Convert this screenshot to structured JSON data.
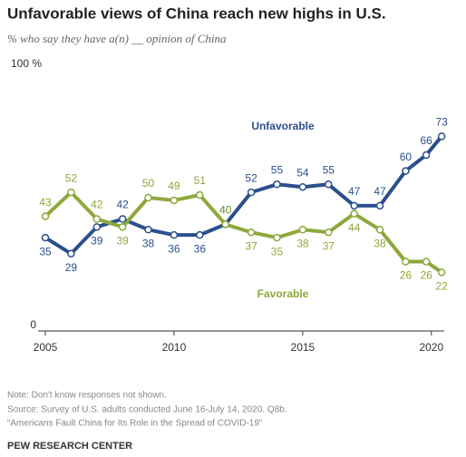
{
  "chart_data": {
    "type": "line",
    "title": "Unfavorable views of China reach new highs in U.S.",
    "subtitle": "% who say they have a(n) __ opinion of China",
    "x": [
      2005,
      2006,
      2007,
      2008,
      2009,
      2010,
      2011,
      2012,
      2013,
      2014,
      2015,
      2016,
      2017,
      2018,
      2019,
      2019.8,
      2020.4
    ],
    "series": [
      {
        "name": "Unfavorable",
        "color": "#2b4f8c",
        "values": [
          35,
          29,
          39,
          42,
          38,
          36,
          36,
          40,
          52,
          55,
          54,
          55,
          47,
          47,
          60,
          66,
          73
        ]
      },
      {
        "name": "Favorable",
        "color": "#8ea83b",
        "values": [
          43,
          52,
          42,
          39,
          50,
          49,
          51,
          40,
          37,
          35,
          38,
          37,
          44,
          38,
          26,
          26,
          22
        ]
      }
    ],
    "xlim": [
      2005,
      2020.5
    ],
    "xticks": [
      2005,
      2010,
      2015,
      2020
    ],
    "ylim": [
      0,
      100
    ],
    "yticks": [
      0,
      {
        "value": 100,
        "label": "100 %"
      }
    ],
    "notes": [
      "Note: Don't know responses not shown.",
      "Source: Survey of U.S. adults conducted June 16-July 14, 2020. Q8b.",
      "“Americans Fault China for Its Role in the Spread of COVID-19”"
    ],
    "credit": "PEW RESEARCH CENTER"
  }
}
